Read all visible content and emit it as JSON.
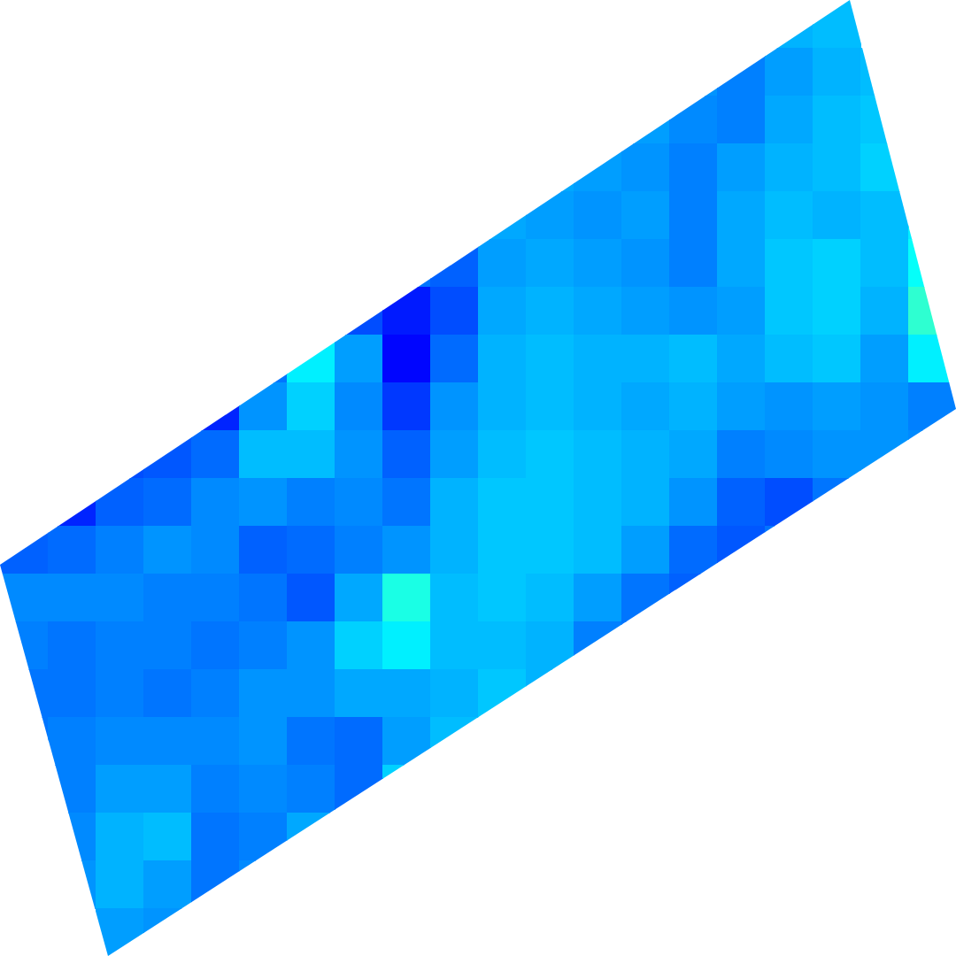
{
  "chart_data": {
    "type": "heatmap",
    "tick_labels": false,
    "color": "jet",
    "zlim": [
      0,
      1
    ],
    "values": [
      [
        null,
        null,
        null,
        null,
        null,
        null,
        null,
        null,
        null,
        null,
        null,
        null,
        null,
        null,
        null,
        null,
        0.3,
        0.31,
        null,
        null
      ],
      [
        null,
        null,
        null,
        null,
        null,
        null,
        null,
        null,
        null,
        null,
        null,
        null,
        null,
        null,
        0.27,
        0.25,
        0.28,
        0.3,
        0.31,
        null
      ],
      [
        null,
        null,
        null,
        null,
        null,
        null,
        null,
        null,
        null,
        null,
        null,
        null,
        null,
        0.28,
        0.26,
        0.25,
        0.29,
        0.31,
        0.32,
        null
      ],
      [
        null,
        null,
        null,
        null,
        null,
        null,
        null,
        null,
        null,
        null,
        null,
        0.29,
        0.28,
        0.27,
        0.25,
        0.28,
        0.3,
        0.31,
        0.33,
        null
      ],
      [
        null,
        null,
        null,
        null,
        null,
        null,
        null,
        null,
        null,
        null,
        0.29,
        0.28,
        0.27,
        0.28,
        0.25,
        0.29,
        0.31,
        0.3,
        0.31,
        0.36
      ],
      [
        null,
        null,
        null,
        null,
        null,
        null,
        null,
        null,
        0.24,
        0.22,
        0.28,
        0.29,
        0.28,
        0.27,
        0.25,
        0.29,
        0.32,
        0.33,
        0.31,
        0.38
      ],
      [
        null,
        null,
        null,
        null,
        null,
        null,
        null,
        0.2,
        0.15,
        0.2,
        0.29,
        0.3,
        0.29,
        0.28,
        0.27,
        0.28,
        0.32,
        0.33,
        0.3,
        0.42
      ],
      [
        null,
        null,
        null,
        null,
        null,
        0.24,
        0.36,
        0.28,
        0.13,
        0.23,
        0.3,
        0.31,
        0.3,
        0.3,
        0.31,
        0.29,
        0.31,
        0.32,
        0.28,
        0.36
      ],
      [
        null,
        null,
        null,
        null,
        0.16,
        0.27,
        0.33,
        0.26,
        0.18,
        0.27,
        0.3,
        0.31,
        0.3,
        0.29,
        0.3,
        0.28,
        0.27,
        0.28,
        0.27,
        0.25
      ],
      [
        null,
        null,
        0.2,
        0.21,
        0.23,
        0.31,
        0.31,
        0.27,
        0.22,
        0.28,
        0.31,
        0.32,
        0.31,
        0.3,
        0.29,
        0.25,
        0.26,
        0.27,
        0.27,
        0.26
      ],
      [
        null,
        0.16,
        0.22,
        0.23,
        0.26,
        0.27,
        0.25,
        0.26,
        0.24,
        0.3,
        0.32,
        0.32,
        0.31,
        0.3,
        0.27,
        0.22,
        0.2,
        0.24,
        null,
        null
      ],
      [
        0.22,
        0.23,
        0.25,
        0.27,
        0.26,
        0.22,
        0.23,
        0.25,
        0.27,
        0.3,
        0.32,
        0.32,
        0.31,
        0.28,
        0.23,
        0.21,
        0.24,
        null,
        null,
        null
      ],
      [
        0.26,
        0.26,
        0.26,
        0.25,
        0.25,
        0.24,
        0.21,
        0.29,
        0.4,
        0.31,
        0.32,
        0.31,
        0.28,
        0.24,
        0.22,
        null,
        null,
        null,
        null,
        null
      ],
      [
        0.25,
        0.24,
        0.25,
        0.25,
        0.24,
        0.25,
        0.27,
        0.33,
        0.36,
        0.31,
        0.31,
        0.3,
        0.25,
        0.24,
        null,
        null,
        null,
        null,
        null,
        null
      ],
      [
        0.24,
        0.24,
        0.25,
        0.24,
        0.25,
        0.27,
        0.27,
        0.29,
        0.29,
        0.3,
        0.32,
        0.3,
        null,
        null,
        null,
        null,
        null,
        null,
        null,
        null
      ],
      [
        0.24,
        0.25,
        0.26,
        0.26,
        0.26,
        0.27,
        0.24,
        0.23,
        0.28,
        0.31,
        null,
        null,
        null,
        null,
        null,
        null,
        null,
        null,
        null,
        null
      ],
      [
        null,
        0.25,
        0.28,
        0.28,
        0.25,
        0.26,
        0.25,
        0.23,
        0.33,
        null,
        null,
        null,
        null,
        null,
        null,
        null,
        null,
        null,
        null,
        null
      ],
      [
        null,
        0.26,
        0.3,
        0.31,
        0.24,
        0.25,
        0.29,
        null,
        null,
        null,
        null,
        null,
        null,
        null,
        null,
        null,
        null,
        null,
        null,
        null
      ],
      [
        null,
        0.27,
        0.3,
        0.28,
        0.24,
        0.26,
        null,
        null,
        null,
        null,
        null,
        null,
        null,
        null,
        null,
        null,
        null,
        null,
        null,
        null
      ],
      [
        null,
        null,
        0.28,
        0.27,
        null,
        null,
        null,
        null,
        null,
        null,
        null,
        null,
        null,
        null,
        null,
        null,
        null,
        null,
        null,
        null
      ]
    ]
  }
}
